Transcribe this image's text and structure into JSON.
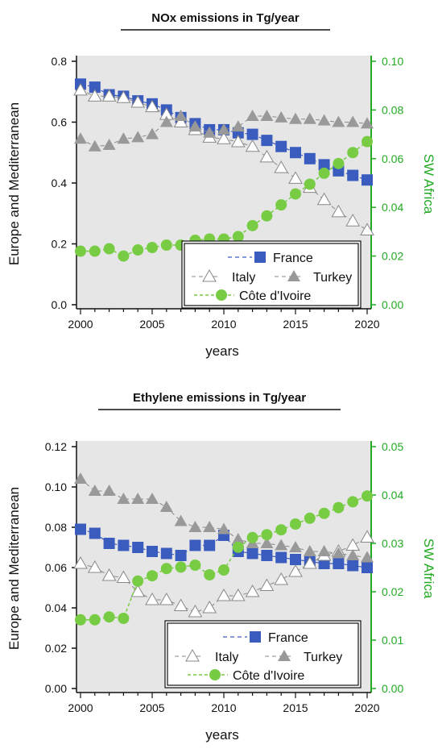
{
  "colors": {
    "france": "#3a5cbf",
    "italy": "#ffffff",
    "turkey": "#999999",
    "cote": "#77cc44",
    "right_axis": "#22aa22",
    "plot_bg": "#e6e6e6"
  },
  "chart_data": [
    {
      "type": "line",
      "title": "NOx emissions in Tg/year",
      "xlabel": "years",
      "ylabel": "Europe and Mediterranean",
      "y2label": "SW Africa",
      "xlim": [
        2000,
        2020
      ],
      "ylim": [
        0,
        0.8
      ],
      "y2lim": [
        0,
        0.1
      ],
      "xticks": [
        "2000",
        "2005",
        "2010",
        "2015",
        "2020"
      ],
      "yticks": [
        "0.0",
        "0.2",
        "0.4",
        "0.6",
        "0.8"
      ],
      "y2ticks": [
        "0.00",
        "0.02",
        "0.04",
        "0.06",
        "0.08",
        "0.10"
      ],
      "x": [
        2000,
        2001,
        2002,
        2003,
        2004,
        2005,
        2006,
        2007,
        2008,
        2009,
        2010,
        2011,
        2012,
        2013,
        2014,
        2015,
        2016,
        2017,
        2018,
        2019,
        2020
      ],
      "legend": {
        "france": "France",
        "italy": "Italy",
        "turkey": "Turkey",
        "cote": "Côte d'Ivoire"
      },
      "legend_position": "bottom-right",
      "series": [
        {
          "name": "France",
          "axis": "left",
          "marker": "square",
          "values": [
            0.725,
            0.715,
            0.69,
            0.685,
            0.67,
            0.66,
            0.64,
            0.615,
            0.595,
            0.575,
            0.575,
            0.565,
            0.56,
            0.54,
            0.52,
            0.5,
            0.48,
            0.46,
            0.44,
            0.425,
            0.41
          ]
        },
        {
          "name": "Italy",
          "axis": "left",
          "marker": "triangle-open",
          "values": [
            0.705,
            0.685,
            0.685,
            0.68,
            0.665,
            0.65,
            0.625,
            0.6,
            0.575,
            0.55,
            0.545,
            0.535,
            0.52,
            0.485,
            0.45,
            0.415,
            0.385,
            0.345,
            0.305,
            0.275,
            0.245
          ]
        },
        {
          "name": "Turkey",
          "axis": "left",
          "marker": "triangle-filled",
          "values": [
            0.545,
            0.52,
            0.525,
            0.545,
            0.55,
            0.56,
            0.6,
            0.62,
            0.585,
            0.565,
            0.575,
            0.585,
            0.62,
            0.62,
            0.615,
            0.61,
            0.61,
            0.605,
            0.6,
            0.6,
            0.595
          ]
        },
        {
          "name": "Côte d'Ivoire",
          "axis": "right",
          "marker": "circle",
          "values": [
            0.022,
            0.022,
            0.023,
            0.02,
            0.0225,
            0.0235,
            0.0245,
            0.0245,
            0.0265,
            0.027,
            0.027,
            0.028,
            0.0325,
            0.0365,
            0.041,
            0.0455,
            0.0495,
            0.054,
            0.058,
            0.0625,
            0.067
          ]
        }
      ]
    },
    {
      "type": "line",
      "title": "Ethylene emissions in Tg/year",
      "xlabel": "years",
      "ylabel": "Europe and Mediterranean",
      "y2label": "SW Africa",
      "xlim": [
        2000,
        2020
      ],
      "ylim": [
        0,
        0.12
      ],
      "y2lim": [
        0,
        0.05
      ],
      "xticks": [
        "2000",
        "2005",
        "2010",
        "2015",
        "2020"
      ],
      "yticks": [
        "0.00",
        "0.02",
        "0.04",
        "0.06",
        "0.08",
        "0.10",
        "0.12"
      ],
      "y2ticks": [
        "0.00",
        "0.01",
        "0.02",
        "0.03",
        "0.04",
        "0.05"
      ],
      "x": [
        2000,
        2001,
        2002,
        2003,
        2004,
        2005,
        2006,
        2007,
        2008,
        2009,
        2010,
        2011,
        2012,
        2013,
        2014,
        2015,
        2016,
        2017,
        2018,
        2019,
        2020
      ],
      "legend": {
        "france": "France",
        "italy": "Italy",
        "turkey": "Turkey",
        "cote": "Côte d'Ivoire"
      },
      "legend_position": "bottom-right",
      "series": [
        {
          "name": "France",
          "axis": "left",
          "marker": "square",
          "values": [
            0.079,
            0.077,
            0.072,
            0.071,
            0.07,
            0.068,
            0.067,
            0.066,
            0.071,
            0.071,
            0.076,
            0.068,
            0.067,
            0.066,
            0.065,
            0.064,
            0.063,
            0.062,
            0.062,
            0.061,
            0.06
          ]
        },
        {
          "name": "Italy",
          "axis": "left",
          "marker": "triangle-open",
          "values": [
            0.062,
            0.06,
            0.056,
            0.055,
            0.048,
            0.044,
            0.044,
            0.041,
            0.038,
            0.04,
            0.046,
            0.046,
            0.048,
            0.051,
            0.054,
            0.058,
            0.062,
            0.066,
            0.068,
            0.071,
            0.075
          ]
        },
        {
          "name": "Turkey",
          "axis": "left",
          "marker": "triangle-filled",
          "values": [
            0.104,
            0.098,
            0.098,
            0.094,
            0.094,
            0.094,
            0.09,
            0.083,
            0.08,
            0.08,
            0.079,
            0.074,
            0.072,
            0.072,
            0.071,
            0.07,
            0.068,
            0.068,
            0.067,
            0.066,
            0.065
          ]
        },
        {
          "name": "Côte d'Ivoire",
          "axis": "right",
          "marker": "circle",
          "values": [
            0.0142,
            0.0142,
            0.0148,
            0.0145,
            0.0222,
            0.0233,
            0.0248,
            0.0251,
            0.0255,
            0.0235,
            0.0245,
            0.0292,
            0.0312,
            0.0318,
            0.0328,
            0.034,
            0.0352,
            0.0362,
            0.0374,
            0.0386,
            0.0398
          ]
        }
      ]
    }
  ]
}
